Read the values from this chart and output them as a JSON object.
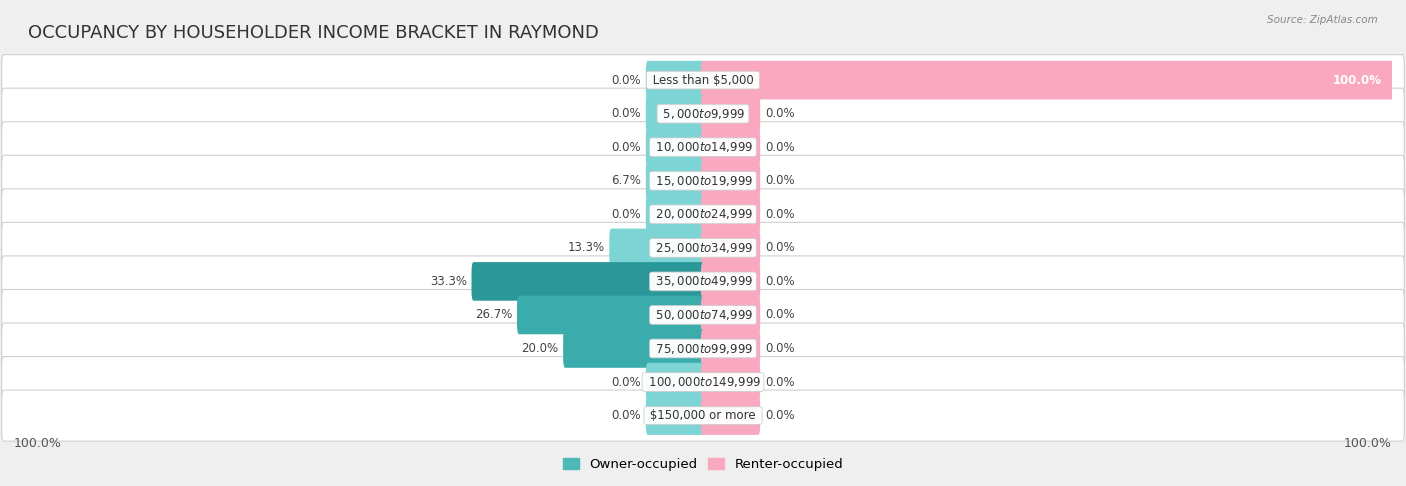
{
  "title": "OCCUPANCY BY HOUSEHOLDER INCOME BRACKET IN RAYMOND",
  "source": "Source: ZipAtlas.com",
  "categories": [
    "Less than $5,000",
    "$5,000 to $9,999",
    "$10,000 to $14,999",
    "$15,000 to $19,999",
    "$20,000 to $24,999",
    "$25,000 to $34,999",
    "$35,000 to $49,999",
    "$50,000 to $74,999",
    "$75,000 to $99,999",
    "$100,000 to $149,999",
    "$150,000 or more"
  ],
  "owner_occupied": [
    0.0,
    0.0,
    0.0,
    6.7,
    0.0,
    13.3,
    33.3,
    26.7,
    20.0,
    0.0,
    0.0
  ],
  "renter_occupied": [
    100.0,
    0.0,
    0.0,
    0.0,
    0.0,
    0.0,
    0.0,
    0.0,
    0.0,
    0.0,
    0.0
  ],
  "owner_color_light": "#7dd4d4",
  "owner_color_mid": "#4db8b8",
  "owner_color_dark": "#2a9898",
  "renter_color": "#f9a8c0",
  "bg_color": "#efefef",
  "row_inner_color": "#ffffff",
  "bar_height": 0.55,
  "title_fontsize": 13,
  "label_fontsize": 8.5,
  "category_fontsize": 8.5,
  "legend_fontsize": 9.5,
  "axis_label_fontsize": 9
}
